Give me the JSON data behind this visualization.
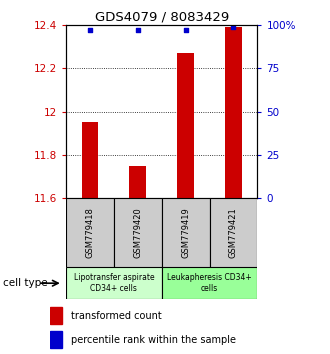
{
  "title": "GDS4079 / 8083429",
  "samples": [
    "GSM779418",
    "GSM779420",
    "GSM779419",
    "GSM779421"
  ],
  "transformed_counts": [
    11.95,
    11.75,
    12.27,
    12.39
  ],
  "percentile_rank_values": [
    97,
    97,
    97,
    99
  ],
  "ylim_left": [
    11.6,
    12.4
  ],
  "ylim_right": [
    0,
    100
  ],
  "yticks_left": [
    11.6,
    11.8,
    12.0,
    12.2,
    12.4
  ],
  "yticks_right": [
    0,
    25,
    50,
    75,
    100
  ],
  "ytick_labels_right": [
    "0",
    "25",
    "50",
    "75",
    "100%"
  ],
  "ytick_labels_left": [
    "11.6",
    "11.8",
    "12",
    "12.2",
    "12.4"
  ],
  "bar_color": "#cc0000",
  "dot_color": "#0000cc",
  "bar_bottom": 11.6,
  "groups": [
    {
      "label": "Lipotransfer aspirate\nCD34+ cells",
      "samples": [
        0,
        1
      ],
      "color": "#ccffcc"
    },
    {
      "label": "Leukapheresis CD34+\ncells",
      "samples": [
        2,
        3
      ],
      "color": "#99ff99"
    }
  ],
  "cell_type_label": "cell type",
  "legend_items": [
    {
      "color": "#cc0000",
      "label": "transformed count"
    },
    {
      "color": "#0000cc",
      "label": "percentile rank within the sample"
    }
  ],
  "sample_box_color": "#cccccc",
  "bar_width": 0.35
}
